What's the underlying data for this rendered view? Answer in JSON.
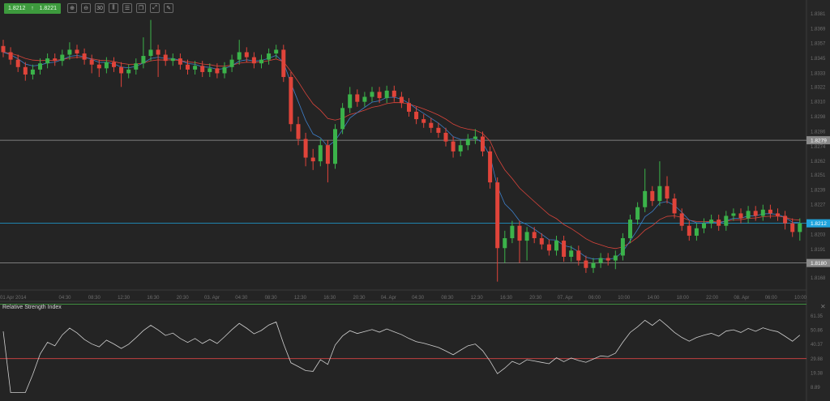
{
  "toolbar": {
    "bid": "1.8212",
    "ask": "1.8221",
    "direction_icon": "arrow-up-icon",
    "buttons": [
      {
        "name": "zoom-in-button",
        "icon": "zoom-in-icon",
        "glyph": "⊕"
      },
      {
        "name": "zoom-out-button",
        "icon": "zoom-out-icon",
        "glyph": "⊖"
      },
      {
        "name": "timeframe-button",
        "icon": "timeframe-icon",
        "glyph": "30"
      },
      {
        "name": "chart-type-button",
        "icon": "candlestick-icon",
        "glyph": "⫼"
      },
      {
        "name": "indicators-button",
        "icon": "indicators-icon",
        "glyph": "☰"
      },
      {
        "name": "templates-button",
        "icon": "copy-icon",
        "glyph": "❐"
      },
      {
        "name": "fullscreen-button",
        "icon": "expand-icon",
        "glyph": "⤢"
      },
      {
        "name": "draw-button",
        "icon": "pencil-icon",
        "glyph": "✎"
      }
    ]
  },
  "colors": {
    "up": "#3bb34a",
    "down": "#e0443a",
    "ma_fast": "#3d7fc9",
    "ma_slow": "#d9443b",
    "current_price": "#1fa3dc",
    "level_line": "#9a9a9a",
    "rsi_upper": "#3f8f3f",
    "rsi_lower": "#c04040"
  },
  "chart_data": {
    "type": "candlestick",
    "price_axis_ticks": [
      "1.8381",
      "1.8369",
      "1.8357",
      "1.8345",
      "1.8333",
      "1.8322",
      "1.8310",
      "1.8298",
      "1.8286",
      "1.8274",
      "1.8262",
      "1.8251",
      "1.8239",
      "1.8227",
      "1.8203",
      "1.8191",
      "1.8168"
    ],
    "ylim": [
      1.8155,
      1.8395
    ],
    "time_axis_ticks": [
      "01 Apr 2014",
      "04:30",
      "08:30",
      "12:30",
      "16:30",
      "20:30",
      "03. Apr",
      "04:30",
      "08:30",
      "12:30",
      "16:30",
      "20:30",
      "04. Apr",
      "04:30",
      "08:30",
      "12:30",
      "16:30",
      "20:30",
      "07. Apr",
      "06:00",
      "10:00",
      "14:00",
      "18:00",
      "22:00",
      "08. Apr",
      "06:00",
      "10:00"
    ],
    "price_labels": [
      {
        "value": "1.8279",
        "kind": "level"
      },
      {
        "value": "1.8212",
        "kind": "current"
      },
      {
        "value": "1.8180",
        "kind": "level"
      }
    ],
    "ohlc": [
      [
        1.8355,
        1.836,
        1.8346,
        1.835
      ],
      [
        1.835,
        1.8354,
        1.834,
        1.8344
      ],
      [
        1.8344,
        1.8348,
        1.8334,
        1.8338
      ],
      [
        1.8338,
        1.8342,
        1.8327,
        1.8332
      ],
      [
        1.8332,
        1.834,
        1.8328,
        1.8336
      ],
      [
        1.8336,
        1.8345,
        1.8332,
        1.8341
      ],
      [
        1.8341,
        1.8349,
        1.8337,
        1.8345
      ],
      [
        1.8345,
        1.8349,
        1.8339,
        1.8343
      ],
      [
        1.8343,
        1.8352,
        1.8339,
        1.8348
      ],
      [
        1.8348,
        1.8358,
        1.8344,
        1.8352
      ],
      [
        1.8352,
        1.8356,
        1.8345,
        1.8349
      ],
      [
        1.8349,
        1.8353,
        1.834,
        1.8344
      ],
      [
        1.8344,
        1.8348,
        1.8333,
        1.834
      ],
      [
        1.834,
        1.8344,
        1.833,
        1.8337
      ],
      [
        1.8337,
        1.8346,
        1.8333,
        1.8342
      ],
      [
        1.8342,
        1.8346,
        1.8334,
        1.8338
      ],
      [
        1.8338,
        1.8342,
        1.8322,
        1.8333
      ],
      [
        1.8333,
        1.834,
        1.8329,
        1.8336
      ],
      [
        1.8336,
        1.8345,
        1.8332,
        1.8341
      ],
      [
        1.8341,
        1.8362,
        1.8337,
        1.8347
      ],
      [
        1.8347,
        1.8376,
        1.8343,
        1.8352
      ],
      [
        1.8352,
        1.8356,
        1.833,
        1.8348
      ],
      [
        1.8348,
        1.8352,
        1.8339,
        1.8343
      ],
      [
        1.8343,
        1.8349,
        1.8339,
        1.8345
      ],
      [
        1.8345,
        1.8349,
        1.8336,
        1.834
      ],
      [
        1.834,
        1.8344,
        1.8332,
        1.8336
      ],
      [
        1.8336,
        1.8343,
        1.8332,
        1.8339
      ],
      [
        1.8339,
        1.8343,
        1.833,
        1.8334
      ],
      [
        1.8334,
        1.8341,
        1.833,
        1.8337
      ],
      [
        1.8337,
        1.8341,
        1.8329,
        1.8333
      ],
      [
        1.8333,
        1.8342,
        1.8329,
        1.8338
      ],
      [
        1.8338,
        1.8348,
        1.8334,
        1.8344
      ],
      [
        1.8344,
        1.836,
        1.834,
        1.835
      ],
      [
        1.835,
        1.8354,
        1.8342,
        1.8346
      ],
      [
        1.8346,
        1.835,
        1.8337,
        1.8341
      ],
      [
        1.8341,
        1.8348,
        1.8337,
        1.8344
      ],
      [
        1.8344,
        1.8353,
        1.834,
        1.8349
      ],
      [
        1.8349,
        1.8356,
        1.8345,
        1.8352
      ],
      [
        1.8352,
        1.8356,
        1.8326,
        1.833
      ],
      [
        1.833,
        1.8334,
        1.8286,
        1.8292
      ],
      [
        1.8292,
        1.8298,
        1.8275,
        1.828
      ],
      [
        1.828,
        1.8285,
        1.8258,
        1.8265
      ],
      [
        1.8265,
        1.8272,
        1.8255,
        1.8262
      ],
      [
        1.8262,
        1.828,
        1.8258,
        1.8275
      ],
      [
        1.8275,
        1.8279,
        1.8245,
        1.826
      ],
      [
        1.826,
        1.8292,
        1.8256,
        1.8288
      ],
      [
        1.8288,
        1.8309,
        1.8284,
        1.8305
      ],
      [
        1.8305,
        1.8322,
        1.8301,
        1.8316
      ],
      [
        1.8316,
        1.832,
        1.8306,
        1.831
      ],
      [
        1.831,
        1.8318,
        1.8306,
        1.8314
      ],
      [
        1.8314,
        1.8322,
        1.831,
        1.8318
      ],
      [
        1.8318,
        1.8322,
        1.8309,
        1.8313
      ],
      [
        1.8313,
        1.8323,
        1.8309,
        1.8319
      ],
      [
        1.8319,
        1.8323,
        1.831,
        1.8314
      ],
      [
        1.8314,
        1.8318,
        1.8305,
        1.8309
      ],
      [
        1.8309,
        1.8313,
        1.8298,
        1.8302
      ],
      [
        1.8302,
        1.8306,
        1.8292,
        1.8296
      ],
      [
        1.8296,
        1.83,
        1.8289,
        1.8293
      ],
      [
        1.8293,
        1.8297,
        1.8285,
        1.8289
      ],
      [
        1.8289,
        1.8293,
        1.8281,
        1.8285
      ],
      [
        1.8285,
        1.8289,
        1.8274,
        1.8278
      ],
      [
        1.8278,
        1.8282,
        1.8265,
        1.827
      ],
      [
        1.827,
        1.8279,
        1.8266,
        1.8275
      ],
      [
        1.8275,
        1.8284,
        1.8271,
        1.828
      ],
      [
        1.828,
        1.8288,
        1.8276,
        1.8282
      ],
      [
        1.8282,
        1.8286,
        1.8266,
        1.827
      ],
      [
        1.827,
        1.8274,
        1.824,
        1.8245
      ],
      [
        1.8245,
        1.8249,
        1.8165,
        1.8192
      ],
      [
        1.8192,
        1.8206,
        1.818,
        1.82
      ],
      [
        1.82,
        1.8214,
        1.8196,
        1.821
      ],
      [
        1.821,
        1.8214,
        1.818,
        1.8198
      ],
      [
        1.8198,
        1.8209,
        1.8182,
        1.8205
      ],
      [
        1.8205,
        1.8209,
        1.8196,
        1.82
      ],
      [
        1.82,
        1.8204,
        1.8191,
        1.8195
      ],
      [
        1.8195,
        1.8199,
        1.8186,
        1.819
      ],
      [
        1.819,
        1.8202,
        1.8186,
        1.8198
      ],
      [
        1.8198,
        1.8202,
        1.8181,
        1.8185
      ],
      [
        1.8185,
        1.8194,
        1.8181,
        1.819
      ],
      [
        1.819,
        1.8194,
        1.8178,
        1.8182
      ],
      [
        1.8182,
        1.8186,
        1.8172,
        1.8176
      ],
      [
        1.8176,
        1.8184,
        1.8172,
        1.818
      ],
      [
        1.818,
        1.8188,
        1.8176,
        1.8184
      ],
      [
        1.8184,
        1.8188,
        1.8178,
        1.8182
      ],
      [
        1.8182,
        1.819,
        1.8175,
        1.8186
      ],
      [
        1.8186,
        1.8204,
        1.8182,
        1.82
      ],
      [
        1.82,
        1.8219,
        1.8196,
        1.8215
      ],
      [
        1.8215,
        1.8229,
        1.8211,
        1.8225
      ],
      [
        1.8225,
        1.8256,
        1.8221,
        1.8238
      ],
      [
        1.8238,
        1.8242,
        1.8226,
        1.823
      ],
      [
        1.823,
        1.8262,
        1.8226,
        1.8242
      ],
      [
        1.8242,
        1.825,
        1.8228,
        1.8232
      ],
      [
        1.8232,
        1.8236,
        1.8216,
        1.822
      ],
      [
        1.822,
        1.8224,
        1.8206,
        1.821
      ],
      [
        1.821,
        1.8214,
        1.8198,
        1.8202
      ],
      [
        1.8202,
        1.8212,
        1.8198,
        1.8208
      ],
      [
        1.8208,
        1.8216,
        1.8204,
        1.8212
      ],
      [
        1.8212,
        1.8219,
        1.8208,
        1.8215
      ],
      [
        1.8215,
        1.8219,
        1.8206,
        1.821
      ],
      [
        1.821,
        1.8222,
        1.8206,
        1.8218
      ],
      [
        1.8218,
        1.8224,
        1.8214,
        1.822
      ],
      [
        1.822,
        1.8224,
        1.8212,
        1.8216
      ],
      [
        1.8216,
        1.8226,
        1.8212,
        1.8222
      ],
      [
        1.8222,
        1.8226,
        1.8214,
        1.8218
      ],
      [
        1.8218,
        1.8227,
        1.8214,
        1.8223
      ],
      [
        1.8223,
        1.8227,
        1.8216,
        1.822
      ],
      [
        1.822,
        1.8224,
        1.8214,
        1.8218
      ],
      [
        1.8218,
        1.8222,
        1.8207,
        1.8212
      ],
      [
        1.8212,
        1.8216,
        1.8201,
        1.8205
      ],
      [
        1.8205,
        1.8216,
        1.8198,
        1.8212
      ]
    ],
    "rsi": {
      "title": "Relative Strength Index",
      "ticks": [
        "61.35",
        "50.86",
        "40.37",
        "29.88",
        "19.38",
        "8.89"
      ],
      "ylim": [
        3,
        73
      ],
      "upper_level": 70,
      "lower_level": 30
    }
  }
}
